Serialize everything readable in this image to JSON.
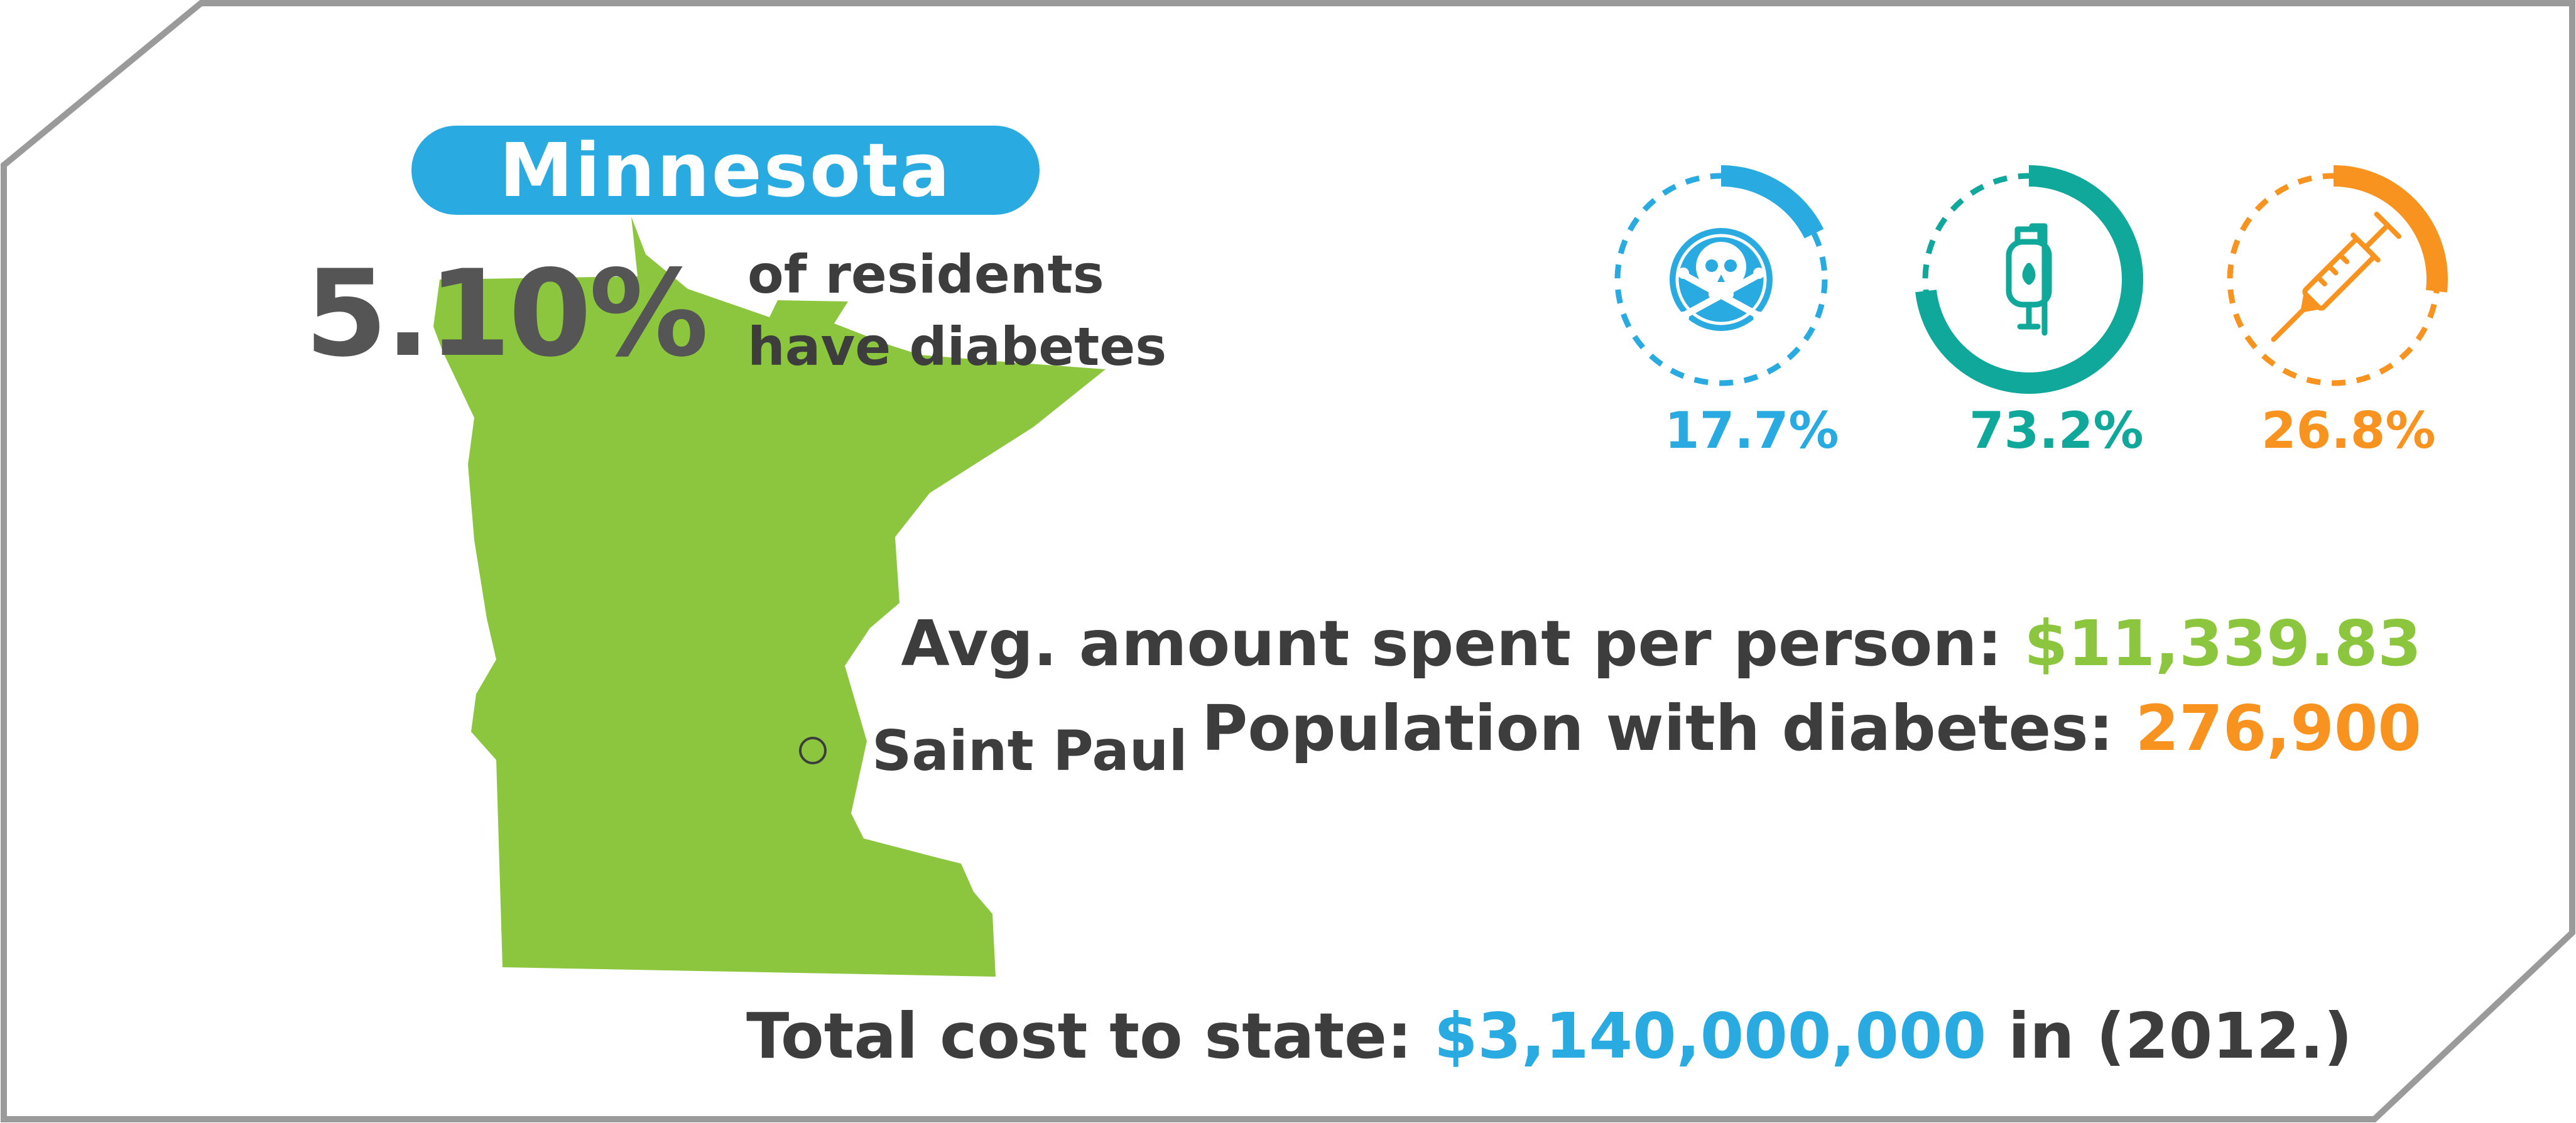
{
  "colors": {
    "blue": "#29abe2",
    "green": "#8cc63f",
    "teal": "#0fa89a",
    "orange": "#f7931e",
    "dark_text": "#3d3d3d",
    "frame": "#9a9a9a"
  },
  "state": {
    "name": "Minnesota",
    "percent": "5.10%",
    "residents_line1": "of residents",
    "residents_line2": "have diabetes",
    "city": "Saint Paul"
  },
  "rings": [
    {
      "value": 17.7,
      "label": "17.7%",
      "icon": "skull-crossbones-icon",
      "color": "#29abe2"
    },
    {
      "value": 73.2,
      "label": "73.2%",
      "icon": "iv-bag-icon",
      "color": "#0fa89a"
    },
    {
      "value": 26.8,
      "label": "26.8%",
      "icon": "syringe-icon",
      "color": "#f7931e"
    }
  ],
  "stats": {
    "avg_label": "Avg. amount spent per person:",
    "avg_value": "$11,339.83",
    "pop_label": "Population with diabetes:",
    "pop_value": "276,900",
    "total_label": "Total cost to state:",
    "total_value": "$3,140,000,000",
    "total_suffix": "in (2012.)"
  }
}
